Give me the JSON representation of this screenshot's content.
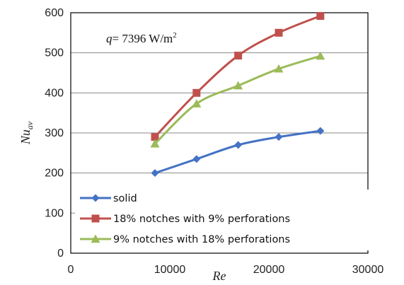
{
  "chart_data": {
    "type": "line",
    "xlabel": "Re",
    "ylabel": "Nu",
    "ylabel_subscript": "av",
    "xlim": [
      0,
      30000
    ],
    "ylim": [
      0,
      600
    ],
    "xticks": [
      0,
      10000,
      20000,
      30000
    ],
    "yticks": [
      0,
      100,
      200,
      300,
      400,
      500,
      600
    ],
    "xtick_labels": [
      "0",
      "10000",
      "20000",
      "30000"
    ],
    "ytick_labels": [
      "0",
      "100",
      "200",
      "300",
      "400",
      "500",
      "600"
    ],
    "grid": "horizontal",
    "legend_position": "bottom-left",
    "annotation": {
      "var": "q",
      "text": "= 7396 W/m",
      "superscript": "2"
    },
    "series": [
      {
        "name": "solid",
        "color": "#4472C4",
        "marker": "diamond",
        "x": [
          8500,
          12700,
          16900,
          21000,
          25200
        ],
        "y": [
          200,
          235,
          270,
          290,
          305
        ]
      },
      {
        "name": "18% notches with 9% perforations",
        "color": "#C0504D",
        "marker": "square",
        "x": [
          8500,
          12700,
          16900,
          21000,
          25200
        ],
        "y": [
          290,
          400,
          493,
          550,
          592
        ]
      },
      {
        "name": "9% notches with 18% perforations",
        "color": "#9BBB59",
        "marker": "triangle",
        "x": [
          8500,
          12700,
          16900,
          21000,
          25200
        ],
        "y": [
          273,
          373,
          418,
          460,
          492
        ]
      }
    ]
  }
}
